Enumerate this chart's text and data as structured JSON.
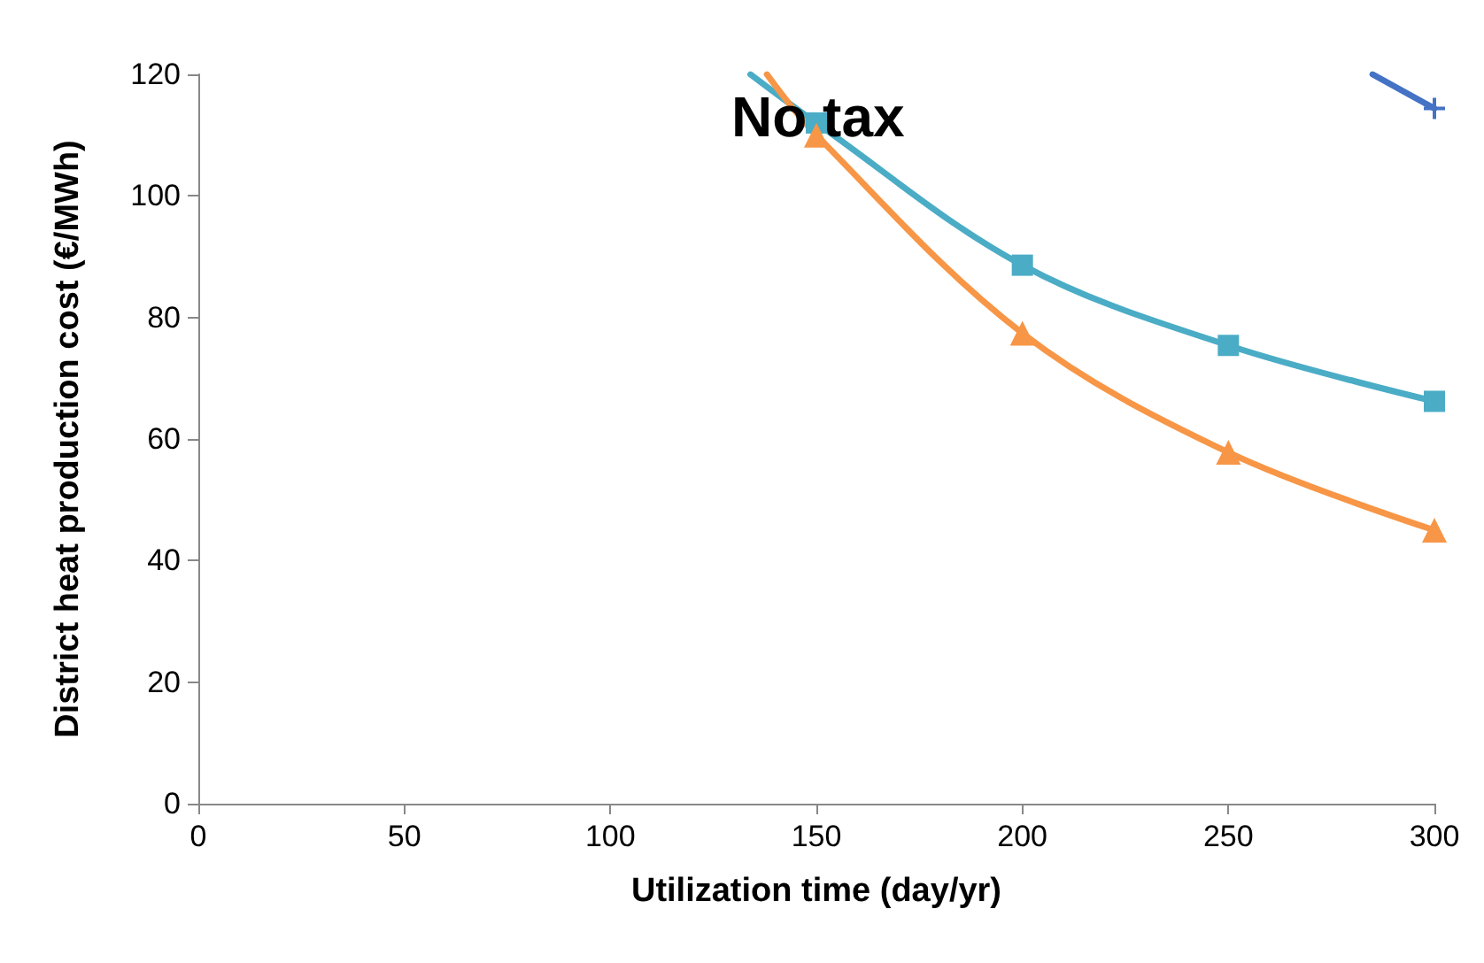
{
  "chart_data": {
    "type": "line",
    "xlabel": "Utilization time (day/yr)",
    "ylabel": "District heat production cost (€/MWh)",
    "annotations": [
      "No tax"
    ],
    "xlim": [
      0,
      300
    ],
    "xticks": [
      0,
      50,
      100,
      150,
      200,
      250,
      300
    ],
    "ylim": [
      0,
      120
    ],
    "yticks": [
      0,
      20,
      40,
      60,
      80,
      100,
      120
    ],
    "grid": false,
    "series": [
      {
        "color": "#4472c4",
        "marker": "cross",
        "x": [
          285,
          300
        ],
        "values": [
          120,
          114.4
        ]
      },
      {
        "color": "#4bacc6",
        "marker": "square",
        "x": [
          134,
          150,
          200,
          250,
          300
        ],
        "values": [
          120,
          112,
          88.6,
          75.4,
          66.2
        ]
      },
      {
        "color": "#f79646",
        "marker": "triangle",
        "x": [
          138,
          150,
          200,
          250,
          300
        ],
        "values": [
          120,
          110,
          77.4,
          57.8,
          45
        ]
      }
    ]
  }
}
